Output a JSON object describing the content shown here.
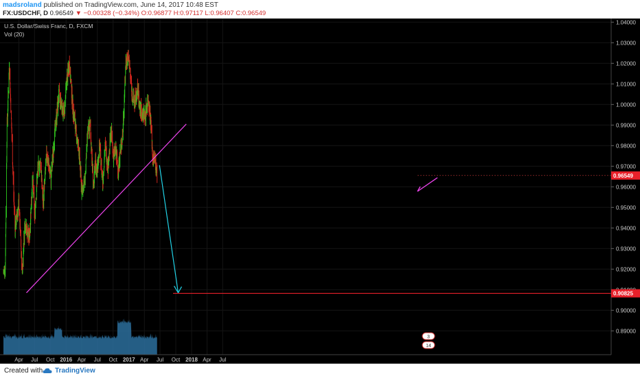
{
  "header": {
    "username": "madsroland",
    "published": "published on TradingView.com, June 14, 2017 10:48 EST",
    "symbol": "FX:USDCHF, D",
    "price": "0.96549",
    "change": "▼ −0.00328 (−0.34%)",
    "ohlc": "O:0.96877 H:0.97117 L:0.96407 C:0.96549"
  },
  "legend": {
    "title": "U.S. Dollar/Swiss Franc, D, FXCM",
    "volume": "Vol (20)"
  },
  "footer": {
    "created": "Created with",
    "brand": "TradingView"
  },
  "colors": {
    "up": "#2ecc1f",
    "down": "#e0281f",
    "trendline": "#ee44ee",
    "arrow": "#22d4e8",
    "target": "#e8202a",
    "volume": "#2b6e9c",
    "axis_text": "#cccccc"
  },
  "chart_data": {
    "type": "line",
    "symbol": "USDCHF",
    "ylim": [
      0.885,
      1.044
    ],
    "yticks": [
      "1.04000",
      "1.03000",
      "1.02000",
      "1.01000",
      "1.00000",
      "0.99000",
      "0.98000",
      "0.97000",
      "0.96000",
      "0.95000",
      "0.94000",
      "0.93000",
      "0.92000",
      "0.91000",
      "0.90000",
      "0.89000"
    ],
    "xticks": [
      "Apr",
      "Jul",
      "Oct",
      "2016",
      "Apr",
      "Jul",
      "Oct",
      "2017",
      "Apr",
      "Jul",
      "Oct",
      "2018",
      "Apr",
      "Jul"
    ],
    "series": [
      {
        "name": "",
        "x": [
          "2015-01-01",
          "2015-01-12",
          "2015-01-22",
          "2015-02-05",
          "2015-03-01",
          "2015-03-10",
          "2015-04-01",
          "2015-04-20",
          "2015-05-05",
          "2015-06-01",
          "2015-06-20",
          "2015-07-01",
          "2015-07-20",
          "2015-08-05",
          "2015-08-20",
          "2015-09-10",
          "2015-10-05",
          "2015-10-25",
          "2015-11-20",
          "2015-12-05",
          "2015-12-20",
          "2016-01-05",
          "2016-01-20",
          "2016-02-10",
          "2016-03-01",
          "2016-03-15",
          "2016-04-01",
          "2016-04-20",
          "2016-05-05",
          "2016-05-20",
          "2016-06-10",
          "2016-06-20",
          "2016-06-27",
          "2016-07-15",
          "2016-08-01",
          "2016-08-15",
          "2016-09-01",
          "2016-09-20",
          "2016-10-01",
          "2016-10-15",
          "2016-10-31",
          "2016-11-09",
          "2016-11-25",
          "2016-12-15",
          "2017-01-01",
          "2017-01-20",
          "2017-02-05",
          "2017-02-20",
          "2017-03-05",
          "2017-03-20",
          "2017-04-05",
          "2017-04-25",
          "2017-05-10",
          "2017-05-20",
          "2017-06-01",
          "2017-06-14"
        ],
        "values": [
          0.918,
          0.922,
          0.99,
          1.02,
          0.958,
          0.94,
          0.952,
          0.918,
          0.942,
          0.935,
          0.965,
          0.946,
          0.968,
          0.972,
          0.952,
          0.976,
          0.964,
          0.985,
          1.005,
          1.0,
          0.995,
          1.012,
          1.02,
          0.998,
          0.985,
          0.978,
          0.958,
          0.963,
          0.986,
          0.99,
          0.958,
          0.975,
          0.966,
          0.98,
          0.962,
          0.98,
          0.97,
          0.988,
          0.975,
          0.978,
          0.968,
          0.975,
          0.985,
          1.022,
          1.022,
          1.004,
          1.001,
          1.007,
          0.999,
          0.995,
          0.995,
          1.003,
          0.99,
          0.972,
          0.975,
          0.9655
        ]
      },
      {
        "name": "",
        "x": [
          "2015-05-15",
          "2017-12-01"
        ],
        "values": [
          0.9085,
          0.9905
        ]
      },
      {
        "name": "",
        "x": [
          "2017-06-28",
          "2017-10-15"
        ],
        "values": [
          0.9705,
          0.9085
        ]
      },
      {
        "name": "",
        "x": [
          "2017-09-15",
          "2018-08-10"
        ],
        "values": [
          0.90825,
          0.90825
        ]
      }
    ],
    "price_labels": [
      {
        "label": "0.96549",
        "value": 0.96549,
        "color": "#e8202a"
      },
      {
        "label": "0.90825",
        "value": 0.90825,
        "color": "#e8202a"
      }
    ],
    "volume_badges": [
      "3",
      "14"
    ]
  }
}
